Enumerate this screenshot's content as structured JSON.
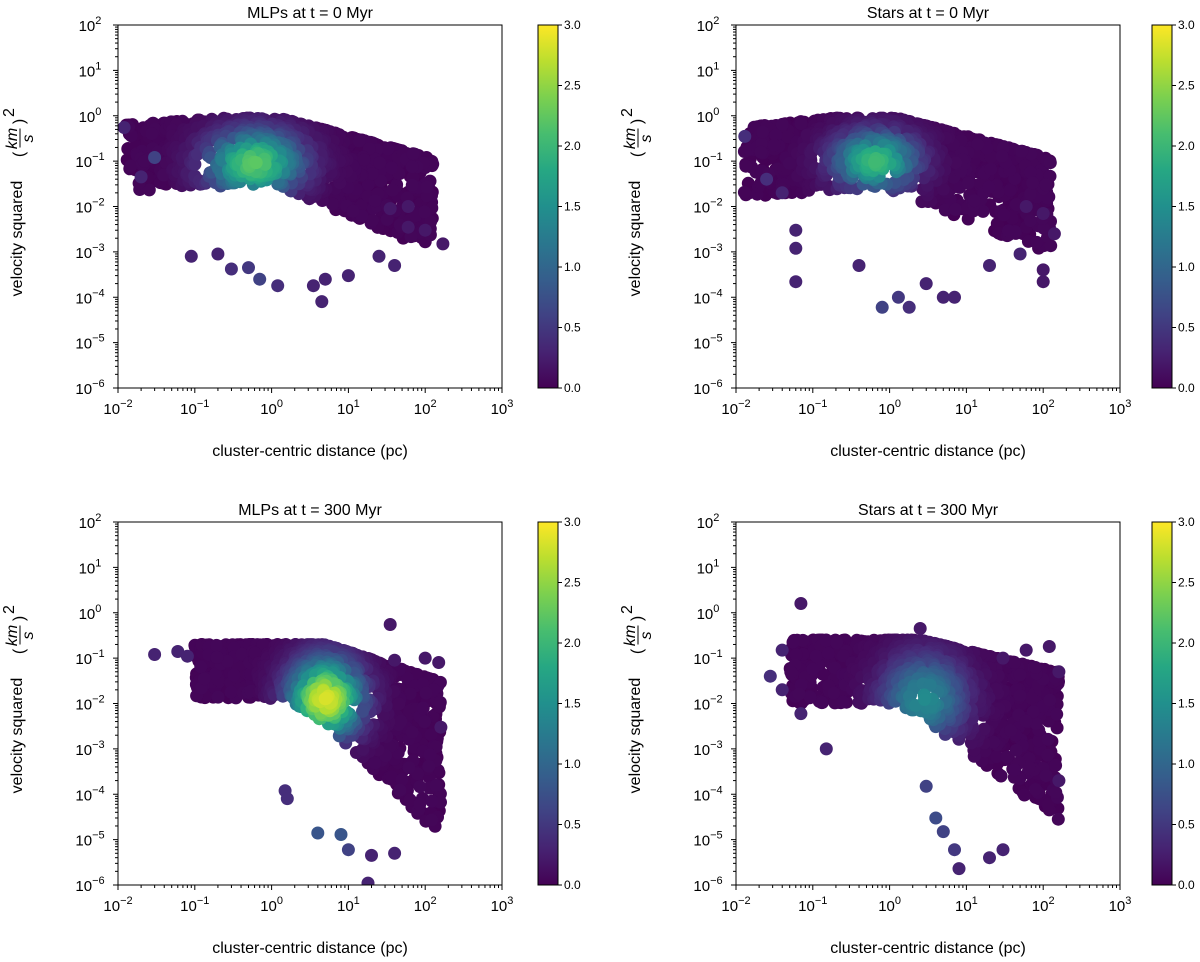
{
  "figure": {
    "panel_count": 4,
    "colormap": "viridis"
  },
  "chart_data": [
    {
      "type": "scatter",
      "title": "MLPs at t = 0 Myr",
      "xlabel": "cluster-centric distance (pc)",
      "ylabel": "velocity squared (km/s)^2",
      "xscale": "log",
      "yscale": "log",
      "xlim": [
        0.01,
        1000
      ],
      "ylim": [
        1e-06,
        100
      ],
      "x_tick_labels": [
        "10^-2",
        "10^-1",
        "10^0",
        "10^1",
        "10^2",
        "10^3"
      ],
      "y_tick_labels": [
        "10^-6",
        "10^-5",
        "10^-4",
        "10^-3",
        "10^-2",
        "10^-1",
        "10^0",
        "10^1",
        "10^2"
      ],
      "colorbar": {
        "min": 0.0,
        "max": 3.0,
        "ticks": [
          "0.0",
          "0.5",
          "1.0",
          "1.5",
          "2.0",
          "2.5",
          "3.0"
        ]
      },
      "grid": false,
      "points": [
        {
          "x": 0.012,
          "y": 0.55,
          "c": 0.3
        },
        {
          "x": 0.02,
          "y": 0.045,
          "c": 0.3
        },
        {
          "x": 0.03,
          "y": 0.12,
          "c": 0.6
        },
        {
          "x": 0.09,
          "y": 0.0008,
          "c": 0.3
        },
        {
          "x": 0.2,
          "y": 0.0009,
          "c": 0.3
        },
        {
          "x": 0.3,
          "y": 0.00042,
          "c": 0.4
        },
        {
          "x": 0.5,
          "y": 0.00045,
          "c": 0.5
        },
        {
          "x": 0.7,
          "y": 0.00025,
          "c": 0.6
        },
        {
          "x": 1.2,
          "y": 0.00018,
          "c": 0.4
        },
        {
          "x": 3.5,
          "y": 0.00018,
          "c": 0.3
        },
        {
          "x": 4.5,
          "y": 8e-05,
          "c": 0.3
        },
        {
          "x": 5,
          "y": 0.00025,
          "c": 0.3
        },
        {
          "x": 10,
          "y": 0.0003,
          "c": 0.3
        },
        {
          "x": 25,
          "y": 0.0008,
          "c": 0.3
        },
        {
          "x": 40,
          "y": 0.0005,
          "c": 0.3
        },
        {
          "x": 60,
          "y": 0.0035,
          "c": 0.2
        },
        {
          "x": 100,
          "y": 0.003,
          "c": 0.2
        },
        {
          "x": 170,
          "y": 0.0015,
          "c": 0.2
        },
        {
          "x": 35,
          "y": 0.009,
          "c": 0.2
        },
        {
          "x": 60,
          "y": 0.01,
          "c": 0.2
        }
      ],
      "density_peak": {
        "x": 0.6,
        "y": 0.09,
        "c": 2.2
      }
    },
    {
      "type": "scatter",
      "title": "Stars at t = 0 Myr",
      "xlabel": "cluster-centric distance (pc)",
      "ylabel": "velocity squared (km/s)^2",
      "xscale": "log",
      "yscale": "log",
      "xlim": [
        0.01,
        1000
      ],
      "ylim": [
        1e-06,
        100
      ],
      "x_tick_labels": [
        "10^-2",
        "10^-1",
        "10^0",
        "10^1",
        "10^2",
        "10^3"
      ],
      "y_tick_labels": [
        "10^-6",
        "10^-5",
        "10^-4",
        "10^-3",
        "10^-2",
        "10^-1",
        "10^0",
        "10^1",
        "10^2"
      ],
      "colorbar": {
        "min": 0.0,
        "max": 3.0,
        "ticks": [
          "0.0",
          "0.5",
          "1.0",
          "1.5",
          "2.0",
          "2.5",
          "3.0"
        ]
      },
      "grid": false,
      "points": [
        {
          "x": 0.013,
          "y": 0.35,
          "c": 0.4
        },
        {
          "x": 0.025,
          "y": 0.04,
          "c": 0.4
        },
        {
          "x": 0.04,
          "y": 0.02,
          "c": 0.3
        },
        {
          "x": 0.06,
          "y": 0.003,
          "c": 0.3
        },
        {
          "x": 0.06,
          "y": 0.0012,
          "c": 0.3
        },
        {
          "x": 0.06,
          "y": 0.00022,
          "c": 0.3
        },
        {
          "x": 0.4,
          "y": 0.0005,
          "c": 0.3
        },
        {
          "x": 0.8,
          "y": 6e-05,
          "c": 0.6
        },
        {
          "x": 1.3,
          "y": 0.0001,
          "c": 0.5
        },
        {
          "x": 1.8,
          "y": 6e-05,
          "c": 0.4
        },
        {
          "x": 3,
          "y": 0.0002,
          "c": 0.3
        },
        {
          "x": 5,
          "y": 0.0001,
          "c": 0.3
        },
        {
          "x": 7,
          "y": 0.0001,
          "c": 0.3
        },
        {
          "x": 20,
          "y": 0.0005,
          "c": 0.3
        },
        {
          "x": 50,
          "y": 0.0009,
          "c": 0.3
        },
        {
          "x": 100,
          "y": 0.0004,
          "c": 0.2
        },
        {
          "x": 100,
          "y": 0.00022,
          "c": 0.2
        },
        {
          "x": 140,
          "y": 0.0025,
          "c": 0.2
        },
        {
          "x": 60,
          "y": 0.01,
          "c": 0.2
        },
        {
          "x": 100,
          "y": 0.007,
          "c": 0.2
        }
      ],
      "density_peak": {
        "x": 0.65,
        "y": 0.1,
        "c": 2.0
      }
    },
    {
      "type": "scatter",
      "title": "MLPs at t = 300 Myr",
      "xlabel": "cluster-centric distance (pc)",
      "ylabel": "velocity squared (km/s)^2",
      "xscale": "log",
      "yscale": "log",
      "xlim": [
        0.01,
        1000
      ],
      "ylim": [
        1e-06,
        100
      ],
      "x_tick_labels": [
        "10^-2",
        "10^-1",
        "10^0",
        "10^1",
        "10^2",
        "10^3"
      ],
      "y_tick_labels": [
        "10^-6",
        "10^-5",
        "10^-4",
        "10^-3",
        "10^-2",
        "10^-1",
        "10^0",
        "10^1",
        "10^2"
      ],
      "colorbar": {
        "min": 0.0,
        "max": 3.0,
        "ticks": [
          "0.0",
          "0.5",
          "1.0",
          "1.5",
          "2.0",
          "2.5",
          "3.0"
        ]
      },
      "grid": false,
      "points": [
        {
          "x": 0.03,
          "y": 0.12,
          "c": 0.3
        },
        {
          "x": 0.06,
          "y": 0.14,
          "c": 0.3
        },
        {
          "x": 0.08,
          "y": 0.11,
          "c": 0.3
        },
        {
          "x": 1.5,
          "y": 0.00012,
          "c": 0.4
        },
        {
          "x": 1.6,
          "y": 8e-05,
          "c": 0.4
        },
        {
          "x": 4,
          "y": 1.4e-05,
          "c": 0.8
        },
        {
          "x": 8,
          "y": 1.3e-05,
          "c": 0.8
        },
        {
          "x": 10,
          "y": 6e-06,
          "c": 0.6
        },
        {
          "x": 20,
          "y": 4.5e-06,
          "c": 0.3
        },
        {
          "x": 40,
          "y": 5e-06,
          "c": 0.3
        },
        {
          "x": 18,
          "y": 1.1e-06,
          "c": 0.3
        },
        {
          "x": 35,
          "y": 0.55,
          "c": 0.2
        },
        {
          "x": 40,
          "y": 0.09,
          "c": 0.2
        },
        {
          "x": 100,
          "y": 0.1,
          "c": 0.2
        },
        {
          "x": 150,
          "y": 0.08,
          "c": 0.2
        },
        {
          "x": 160,
          "y": 0.003,
          "c": 0.2
        }
      ],
      "density_peak": {
        "x": 5,
        "y": 0.012,
        "c": 2.7
      }
    },
    {
      "type": "scatter",
      "title": "Stars at t = 300 Myr",
      "xlabel": "cluster-centric distance (pc)",
      "ylabel": "velocity squared (km/s)^2",
      "xscale": "log",
      "yscale": "log",
      "xlim": [
        0.01,
        1000
      ],
      "ylim": [
        1e-06,
        100
      ],
      "x_tick_labels": [
        "10^-2",
        "10^-1",
        "10^0",
        "10^1",
        "10^2",
        "10^3"
      ],
      "y_tick_labels": [
        "10^-6",
        "10^-5",
        "10^-4",
        "10^-3",
        "10^-2",
        "10^-1",
        "10^0",
        "10^1",
        "10^2"
      ],
      "colorbar": {
        "min": 0.0,
        "max": 3.0,
        "ticks": [
          "0.0",
          "0.5",
          "1.0",
          "1.5",
          "2.0",
          "2.5",
          "3.0"
        ]
      },
      "grid": false,
      "points": [
        {
          "x": 0.07,
          "y": 1.6,
          "c": 0.2
        },
        {
          "x": 0.028,
          "y": 0.04,
          "c": 0.4
        },
        {
          "x": 0.04,
          "y": 0.15,
          "c": 0.3
        },
        {
          "x": 0.04,
          "y": 0.02,
          "c": 0.3
        },
        {
          "x": 0.07,
          "y": 0.006,
          "c": 0.3
        },
        {
          "x": 0.15,
          "y": 0.001,
          "c": 0.3
        },
        {
          "x": 2.5,
          "y": 0.45,
          "c": 0.2
        },
        {
          "x": 3,
          "y": 0.00015,
          "c": 0.6
        },
        {
          "x": 4,
          "y": 3e-05,
          "c": 0.7
        },
        {
          "x": 5,
          "y": 1.5e-05,
          "c": 0.6
        },
        {
          "x": 7,
          "y": 6e-06,
          "c": 0.5
        },
        {
          "x": 8,
          "y": 2.3e-06,
          "c": 0.3
        },
        {
          "x": 20,
          "y": 4e-06,
          "c": 0.3
        },
        {
          "x": 30,
          "y": 6e-06,
          "c": 0.3
        },
        {
          "x": 30,
          "y": 0.1,
          "c": 0.2
        },
        {
          "x": 60,
          "y": 0.15,
          "c": 0.2
        },
        {
          "x": 120,
          "y": 0.18,
          "c": 0.2
        },
        {
          "x": 160,
          "y": 0.05,
          "c": 0.2
        },
        {
          "x": 160,
          "y": 0.0002,
          "c": 0.2
        }
      ],
      "density_peak": {
        "x": 3,
        "y": 0.015,
        "c": 1.4
      }
    }
  ]
}
